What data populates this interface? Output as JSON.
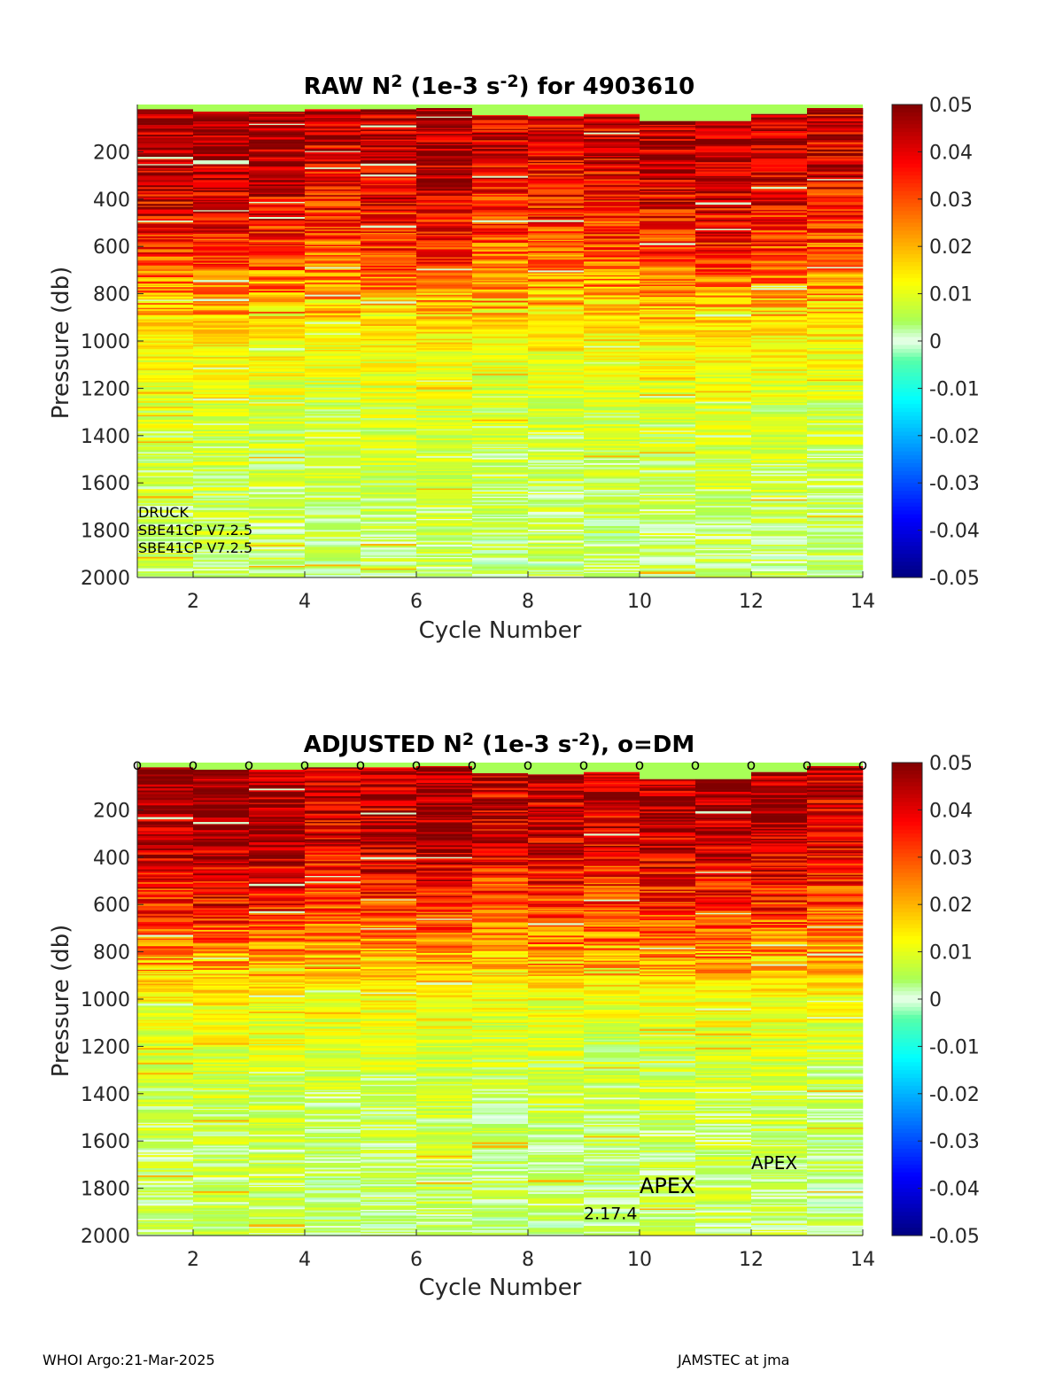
{
  "chart_data": [
    {
      "type": "heatmap",
      "title": {
        "prefix": "RAW N",
        "sup1": "2",
        "mid": " (1e-3 s",
        "sup2": "-2",
        "suffix": ") for 4903610"
      },
      "xlabel": "Cycle Number",
      "ylabel": "Pressure (db)",
      "xlim": [
        1,
        14
      ],
      "ylim": [
        0,
        2000
      ],
      "y_reversed": true,
      "xticks": [
        2,
        4,
        6,
        8,
        10,
        12,
        14
      ],
      "yticks": [
        200,
        400,
        600,
        800,
        1000,
        1200,
        1400,
        1600,
        1800,
        2000
      ],
      "colorbar": {
        "min": -0.05,
        "max": 0.05,
        "ticks": [
          "0.05",
          "0.04",
          "0.03",
          "0.02",
          "0.01",
          "0",
          "-0.01",
          "-0.02",
          "-0.03",
          "-0.04",
          "-0.05"
        ],
        "colormap": "jet"
      },
      "columns": [
        {
          "cycle": 1,
          "surface_p": 20,
          "upper_value": 0.045
        },
        {
          "cycle": 2,
          "surface_p": 30,
          "upper_value": 0.046
        },
        {
          "cycle": 3,
          "surface_p": 30,
          "upper_value": 0.044
        },
        {
          "cycle": 4,
          "surface_p": 20,
          "upper_value": 0.04
        },
        {
          "cycle": 5,
          "surface_p": 20,
          "upper_value": 0.043
        },
        {
          "cycle": 6,
          "surface_p": 15,
          "upper_value": 0.045
        },
        {
          "cycle": 7,
          "surface_p": 45,
          "upper_value": 0.04
        },
        {
          "cycle": 8,
          "surface_p": 50,
          "upper_value": 0.041
        },
        {
          "cycle": 9,
          "surface_p": 40,
          "upper_value": 0.04
        },
        {
          "cycle": 10,
          "surface_p": 70,
          "upper_value": 0.044
        },
        {
          "cycle": 11,
          "surface_p": 70,
          "upper_value": 0.045
        },
        {
          "cycle": 12,
          "surface_p": 40,
          "upper_value": 0.043
        },
        {
          "cycle": 13,
          "surface_p": 15,
          "upper_value": 0.04
        }
      ],
      "profile": [
        {
          "p": 0,
          "v": 0.045
        },
        {
          "p": 300,
          "v": 0.042
        },
        {
          "p": 600,
          "v": 0.032
        },
        {
          "p": 800,
          "v": 0.022
        },
        {
          "p": 1000,
          "v": 0.013
        },
        {
          "p": 1300,
          "v": 0.008
        },
        {
          "p": 1600,
          "v": 0.006
        },
        {
          "p": 2000,
          "v": 0.004
        }
      ],
      "annotations": [
        "DRUCK",
        "SBE41CP V7.2.5",
        "SBE41CP V7.2.5"
      ]
    },
    {
      "type": "heatmap",
      "title": {
        "prefix": "ADJUSTED N",
        "sup1": "2",
        "mid": " (1e-3 s",
        "sup2": "-2",
        "suffix": "), o=DM"
      },
      "xlabel": "Cycle Number",
      "ylabel": "Pressure (db)",
      "xlim": [
        1,
        14
      ],
      "ylim": [
        0,
        2000
      ],
      "y_reversed": true,
      "xticks": [
        2,
        4,
        6,
        8,
        10,
        12,
        14
      ],
      "yticks": [
        200,
        400,
        600,
        800,
        1000,
        1200,
        1400,
        1600,
        1800,
        2000
      ],
      "colorbar": {
        "min": -0.05,
        "max": 0.05,
        "ticks": [
          "0.05",
          "0.04",
          "0.03",
          "0.02",
          "0.01",
          "0",
          "-0.01",
          "-0.02",
          "-0.03",
          "-0.04",
          "-0.05"
        ],
        "colormap": "jet"
      },
      "columns": [
        {
          "cycle": 1,
          "surface_p": 20,
          "upper_value": 0.045
        },
        {
          "cycle": 2,
          "surface_p": 30,
          "upper_value": 0.047
        },
        {
          "cycle": 3,
          "surface_p": 30,
          "upper_value": 0.045
        },
        {
          "cycle": 4,
          "surface_p": 20,
          "upper_value": 0.04
        },
        {
          "cycle": 5,
          "surface_p": 20,
          "upper_value": 0.043
        },
        {
          "cycle": 6,
          "surface_p": 15,
          "upper_value": 0.046
        },
        {
          "cycle": 7,
          "surface_p": 45,
          "upper_value": 0.04
        },
        {
          "cycle": 8,
          "surface_p": 50,
          "upper_value": 0.042
        },
        {
          "cycle": 9,
          "surface_p": 40,
          "upper_value": 0.04
        },
        {
          "cycle": 10,
          "surface_p": 70,
          "upper_value": 0.044
        },
        {
          "cycle": 11,
          "surface_p": 70,
          "upper_value": 0.045
        },
        {
          "cycle": 12,
          "surface_p": 40,
          "upper_value": 0.044
        },
        {
          "cycle": 13,
          "surface_p": 15,
          "upper_value": 0.04
        }
      ],
      "profile": [
        {
          "p": 0,
          "v": 0.046
        },
        {
          "p": 300,
          "v": 0.043
        },
        {
          "p": 600,
          "v": 0.033
        },
        {
          "p": 800,
          "v": 0.022
        },
        {
          "p": 1000,
          "v": 0.012
        },
        {
          "p": 1300,
          "v": 0.007
        },
        {
          "p": 1600,
          "v": 0.005
        },
        {
          "p": 2000,
          "v": 0.004
        }
      ],
      "dm_markers": {
        "label": "o",
        "cycles": [
          1,
          2,
          3,
          4,
          5,
          6,
          7,
          8,
          9,
          10,
          11,
          12,
          13,
          14
        ]
      },
      "annotations": [
        {
          "text": "APEX",
          "cycle": 12.0,
          "p": 1720
        },
        {
          "text": "APEX",
          "cycle": 10.0,
          "p": 1820
        },
        {
          "text": "2.17.4",
          "cycle": 9.0,
          "p": 1930
        }
      ]
    }
  ],
  "footer": {
    "left": "WHOI Argo:21-Mar-2025",
    "right": "JAMSTEC at jma"
  }
}
